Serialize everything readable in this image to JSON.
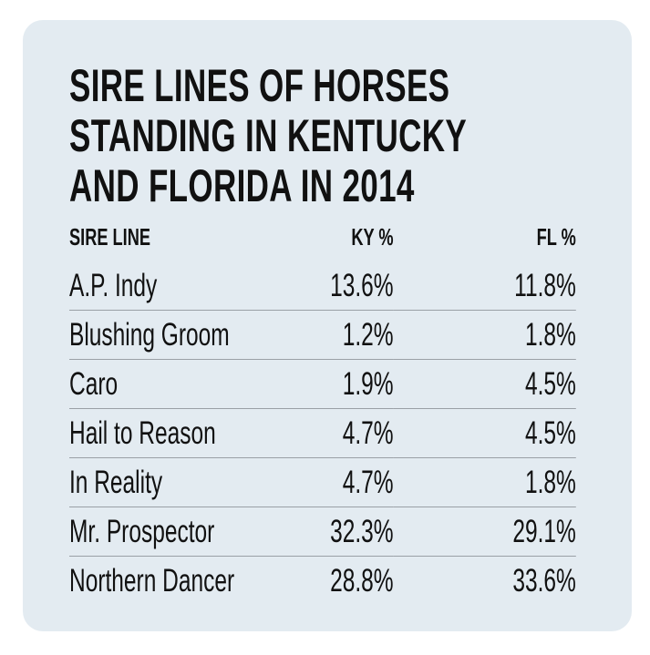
{
  "chart_data": {
    "type": "table",
    "title": "SIRE LINES OF HORSES STANDING IN KENTUCKY AND FLORIDA IN 2014",
    "title_lines": [
      "SIRE LINES OF HORSES",
      "STANDING IN KENTUCKY",
      "AND FLORIDA IN 2014"
    ],
    "columns": [
      "SIRE LINE",
      "KY %",
      "FL %"
    ],
    "rows": [
      [
        "A.P. Indy",
        "13.6%",
        "11.8%"
      ],
      [
        "Blushing Groom",
        "1.2%",
        "1.8%"
      ],
      [
        "Caro",
        "1.9%",
        "4.5%"
      ],
      [
        "Hail to Reason",
        "4.7%",
        "4.5%"
      ],
      [
        "In Reality",
        "4.7%",
        "1.8%"
      ],
      [
        "Mr. Prospector",
        "32.3%",
        "29.1%"
      ],
      [
        "Northern Dancer",
        "28.8%",
        "33.6%"
      ]
    ],
    "colors": {
      "background": "#e3ebf1",
      "divider": "#9aa0a6",
      "text": "#111111"
    }
  }
}
